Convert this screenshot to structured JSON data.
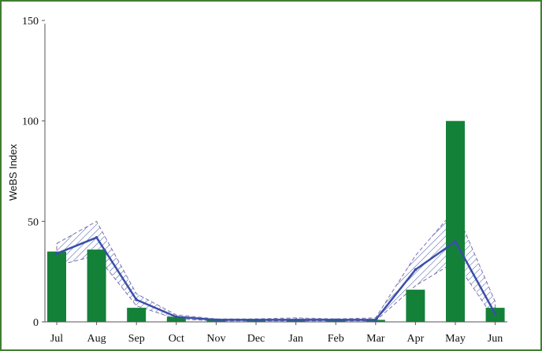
{
  "chart_data": {
    "type": "bar",
    "title": "",
    "xlabel": "",
    "ylabel": "WeBS Index",
    "categories": [
      "Jul",
      "Aug",
      "Sep",
      "Oct",
      "Nov",
      "Dec",
      "Jan",
      "Feb",
      "Mar",
      "Apr",
      "May",
      "Jun"
    ],
    "ylim": [
      0,
      150
    ],
    "yticks": [
      0,
      50,
      100,
      150
    ],
    "grid": false,
    "series": [
      {
        "type": "bar",
        "values": [
          35,
          36,
          7,
          2.5,
          1,
          1,
          1,
          1,
          1,
          16,
          100,
          7
        ]
      },
      {
        "type": "line",
        "values": [
          34,
          42,
          11,
          2.5,
          1,
          1,
          1,
          1,
          1,
          26,
          40,
          4
        ]
      },
      {
        "type": "band",
        "upper": [
          39,
          50,
          14,
          3.5,
          1.5,
          1.5,
          2,
          1.5,
          2,
          33,
          56,
          10
        ],
        "lower": [
          28,
          33,
          8,
          1.5,
          0.5,
          0.5,
          0.5,
          0.5,
          0.5,
          18,
          30,
          1
        ]
      }
    ],
    "colors": {
      "bar": "#148138",
      "line": "#3a4fa8",
      "band_edge": "#7a6fb0",
      "band_hatch": "#3a4fa8",
      "frame": "#3f7f2f"
    }
  }
}
